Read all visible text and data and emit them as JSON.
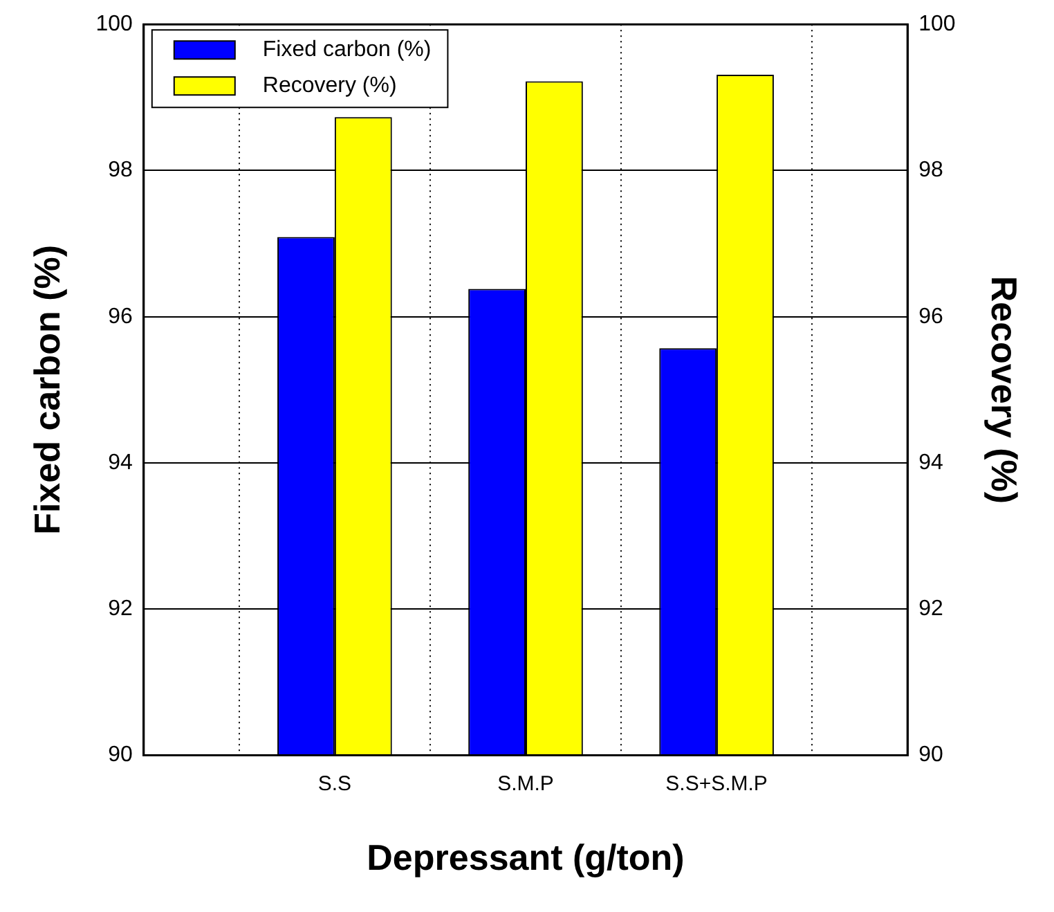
{
  "chart_data": {
    "type": "bar",
    "xlabel": "Depressant (g/ton)",
    "ylabel": "Fixed carbon (%)",
    "y2label": "Recovery (%)",
    "categories": [
      null,
      "S.S",
      "S.M.P",
      "S.S+S.M.P",
      null
    ],
    "series": [
      {
        "name": "Fixed carbon (%)",
        "color": "#0000ff",
        "values": [
          null,
          97.09,
          96.38,
          95.57,
          null
        ]
      },
      {
        "name": "Recovery (%)",
        "color": "#ffff00",
        "axis": "y2",
        "values": [
          null,
          98.73,
          99.22,
          99.31,
          null
        ]
      }
    ],
    "ylim": [
      90,
      100
    ],
    "yticks": [
      90,
      92,
      94,
      96,
      98,
      100
    ],
    "y2lim": [
      90,
      100
    ],
    "y2ticks": [
      90,
      92,
      94,
      96,
      98,
      100
    ],
    "grid": true,
    "legend": "top left"
  }
}
